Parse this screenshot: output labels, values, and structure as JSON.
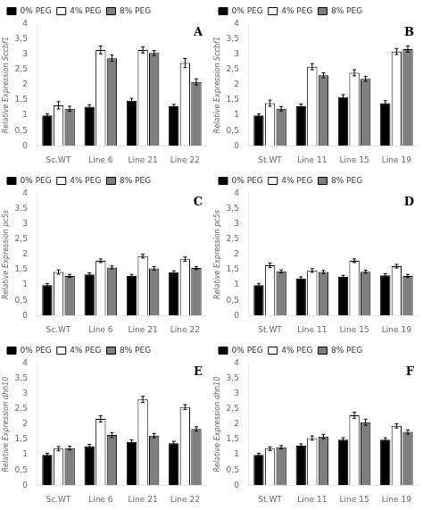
{
  "chart_data": [
    {
      "type": "bar",
      "annotation": "A",
      "ylabel": "Relative Expression Sccbf1",
      "categories": [
        "Sc.WT",
        "Line 6",
        "Line 21",
        "Line 22"
      ],
      "series": [
        {
          "name": "0% PEG",
          "color": "#000000",
          "values": [
            1.0,
            1.28,
            1.48,
            1.3
          ],
          "errors": [
            0.05,
            0.07,
            0.08,
            0.06
          ]
        },
        {
          "name": "4% PEG",
          "color": "#ffffff",
          "values": [
            1.33,
            3.15,
            3.15,
            2.72
          ],
          "errors": [
            0.12,
            0.13,
            0.1,
            0.15
          ]
        },
        {
          "name": "8% PEG",
          "color": "#7f7f7f",
          "values": [
            1.22,
            2.88,
            3.05,
            2.1
          ],
          "errors": [
            0.08,
            0.1,
            0.08,
            0.1
          ]
        }
      ],
      "ylim": [
        0,
        4
      ],
      "yticks": [
        0,
        {
          "value": 0.5,
          "label": "0,5"
        },
        1,
        {
          "value": 1.5,
          "label": "1,5"
        },
        2,
        {
          "value": 2.5,
          "label": "2,5"
        },
        3,
        {
          "value": 3.5,
          "label": "3,5"
        },
        4
      ],
      "grid": false,
      "legend": "upper left"
    },
    {
      "type": "bar",
      "annotation": "B",
      "ylabel": "Relative Expression Sccbf1",
      "categories": [
        "St.WT",
        "Line 11",
        "Line 15",
        "Line 19"
      ],
      "series": [
        {
          "name": "0% PEG",
          "color": "#000000",
          "values": [
            1.0,
            1.3,
            1.6,
            1.4
          ],
          "errors": [
            0.05,
            0.07,
            0.08,
            0.08
          ]
        },
        {
          "name": "4% PEG",
          "color": "#ffffff",
          "values": [
            1.4,
            2.6,
            2.4,
            3.1
          ],
          "errors": [
            0.1,
            0.1,
            0.1,
            0.1
          ]
        },
        {
          "name": "8% PEG",
          "color": "#7f7f7f",
          "values": [
            1.22,
            2.32,
            2.2,
            3.18
          ],
          "errors": [
            0.07,
            0.08,
            0.08,
            0.1
          ]
        }
      ],
      "ylim": [
        0,
        4
      ],
      "yticks": [
        0,
        {
          "value": 0.5,
          "label": "0,5"
        },
        1,
        {
          "value": 1.5,
          "label": "1,5"
        },
        2,
        {
          "value": 2.5,
          "label": "2,5"
        },
        3,
        {
          "value": 3.5,
          "label": "3,5"
        },
        4
      ],
      "grid": false,
      "legend": "upper left"
    },
    {
      "type": "bar",
      "annotation": "C",
      "ylabel": "Relative Expression pc5s",
      "categories": [
        "Sc.WT",
        "Line 6",
        "Line 21",
        "Line 22"
      ],
      "series": [
        {
          "name": "0% PEG",
          "color": "#000000",
          "values": [
            1.0,
            1.35,
            1.3,
            1.42
          ],
          "errors": [
            0.05,
            0.05,
            0.05,
            0.05
          ]
        },
        {
          "name": "4% PEG",
          "color": "#ffffff",
          "values": [
            1.43,
            1.8,
            1.95,
            1.85
          ],
          "errors": [
            0.07,
            0.06,
            0.06,
            0.07
          ]
        },
        {
          "name": "8% PEG",
          "color": "#7f7f7f",
          "values": [
            1.3,
            1.58,
            1.55,
            1.56
          ],
          "errors": [
            0.05,
            0.05,
            0.06,
            0.05
          ]
        }
      ],
      "ylim": [
        0,
        4
      ],
      "yticks": [
        0,
        {
          "value": 0.5,
          "label": "0,5"
        },
        1,
        {
          "value": 1.5,
          "label": "1,5"
        },
        2,
        {
          "value": 2.5,
          "label": "2,5"
        },
        3,
        {
          "value": 3.5,
          "label": "3,5"
        },
        4
      ],
      "grid": false,
      "legend": "upper left"
    },
    {
      "type": "bar",
      "annotation": "D",
      "ylabel": "Relative Expression pc5s",
      "categories": [
        "St.WT",
        "Line 11",
        "Line 15",
        "Line 19"
      ],
      "series": [
        {
          "name": "0% PEG",
          "color": "#000000",
          "values": [
            1.0,
            1.22,
            1.27,
            1.32
          ],
          "errors": [
            0.05,
            0.05,
            0.05,
            0.05
          ]
        },
        {
          "name": "4% PEG",
          "color": "#ffffff",
          "values": [
            1.65,
            1.48,
            1.8,
            1.62
          ],
          "errors": [
            0.07,
            0.06,
            0.06,
            0.06
          ]
        },
        {
          "name": "8% PEG",
          "color": "#7f7f7f",
          "values": [
            1.45,
            1.43,
            1.44,
            1.3
          ],
          "errors": [
            0.05,
            0.05,
            0.05,
            0.05
          ]
        }
      ],
      "ylim": [
        0,
        4
      ],
      "yticks": [
        0,
        {
          "value": 0.5,
          "label": "0,5"
        },
        1,
        {
          "value": 1.5,
          "label": "1,5"
        },
        2,
        {
          "value": 2.5,
          "label": "2,5"
        },
        3,
        {
          "value": 3.5,
          "label": "3,5"
        },
        4
      ],
      "grid": false,
      "legend": "upper left"
    },
    {
      "type": "bar",
      "annotation": "E",
      "ylabel": "Relative Expression dhn10",
      "categories": [
        "Sc.WT",
        "Line 6",
        "Line 21",
        "Line 22"
      ],
      "series": [
        {
          "name": "0% PEG",
          "color": "#000000",
          "values": [
            1.0,
            1.28,
            1.42,
            1.38
          ],
          "errors": [
            0.05,
            0.06,
            0.07,
            0.06
          ]
        },
        {
          "name": "4% PEG",
          "color": "#ffffff",
          "values": [
            1.2,
            2.18,
            2.82,
            2.57
          ],
          "errors": [
            0.07,
            0.1,
            0.1,
            0.08
          ]
        },
        {
          "name": "8% PEG",
          "color": "#7f7f7f",
          "values": [
            1.22,
            1.65,
            1.63,
            1.85
          ],
          "errors": [
            0.06,
            0.08,
            0.07,
            0.07
          ]
        }
      ],
      "ylim": [
        0,
        4
      ],
      "yticks": [
        0,
        {
          "value": 0.5,
          "label": "0,5"
        },
        1,
        {
          "value": 1.5,
          "label": "1,5"
        },
        2,
        {
          "value": 2.5,
          "label": "2,5"
        },
        3,
        {
          "value": 3.5,
          "label": "3,5"
        },
        4
      ],
      "grid": false,
      "legend": "upper left"
    },
    {
      "type": "bar",
      "annotation": "F",
      "ylabel": "Relative Expression dhn10",
      "categories": [
        "St.WT",
        "Line 11",
        "Line 15",
        "Line 19"
      ],
      "series": [
        {
          "name": "0% PEG",
          "color": "#000000",
          "values": [
            1.0,
            1.3,
            1.5,
            1.5
          ],
          "errors": [
            0.05,
            0.06,
            0.06,
            0.06
          ]
        },
        {
          "name": "4% PEG",
          "color": "#ffffff",
          "values": [
            1.2,
            1.55,
            2.3,
            1.95
          ],
          "errors": [
            0.06,
            0.07,
            0.1,
            0.07
          ]
        },
        {
          "name": "8% PEG",
          "color": "#7f7f7f",
          "values": [
            1.25,
            1.6,
            2.07,
            1.75
          ],
          "errors": [
            0.05,
            0.07,
            0.1,
            0.07
          ]
        }
      ],
      "ylim": [
        0,
        4
      ],
      "yticks": [
        0,
        {
          "value": 0.5,
          "label": "0,5"
        },
        1,
        {
          "value": 1.5,
          "label": "1,5"
        },
        2,
        {
          "value": 2.5,
          "label": "2,5"
        },
        3,
        {
          "value": 3.5,
          "label": "3,5"
        },
        4
      ],
      "grid": false,
      "legend": "upper left"
    }
  ]
}
